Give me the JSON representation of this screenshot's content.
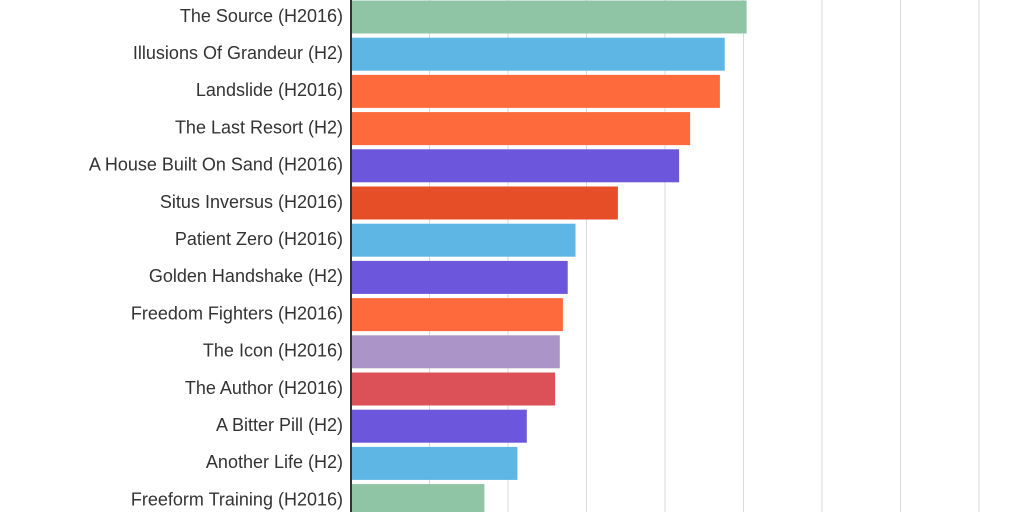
{
  "chart_data": {
    "type": "bar",
    "orientation": "horizontal",
    "title": "",
    "xlabel": "",
    "ylabel": "",
    "xlim": [
      0,
      100
    ],
    "grid": true,
    "categories": [
      "The Source (H2016)",
      "Illusions Of Grandeur (H2)",
      "Landslide (H2016)",
      "The Last Resort (H2)",
      "A House Built On Sand (H2016)",
      "Situs Inversus (H2016)",
      "Patient Zero (H2016)",
      "Golden Handshake (H2)",
      "Freedom Fighters (H2016)",
      "The Icon (H2016)",
      "The Author (H2016)",
      "A Bitter Pill (H2)",
      "Another Life (H2)",
      "Freeform Training (H2016)"
    ],
    "values": [
      50.4,
      47.6,
      47.0,
      43.2,
      41.8,
      34.0,
      28.6,
      27.6,
      27.0,
      26.6,
      26.0,
      22.4,
      21.2,
      17.0
    ],
    "colors": [
      "#8fc4a5",
      "#5eb6e4",
      "#ff6a3d",
      "#ff6a3d",
      "#6c56db",
      "#e54e27",
      "#5eb6e4",
      "#6c56db",
      "#ff6a3d",
      "#ab95c8",
      "#dc5058",
      "#6c56db",
      "#5eb6e4",
      "#8fc4a5"
    ]
  }
}
